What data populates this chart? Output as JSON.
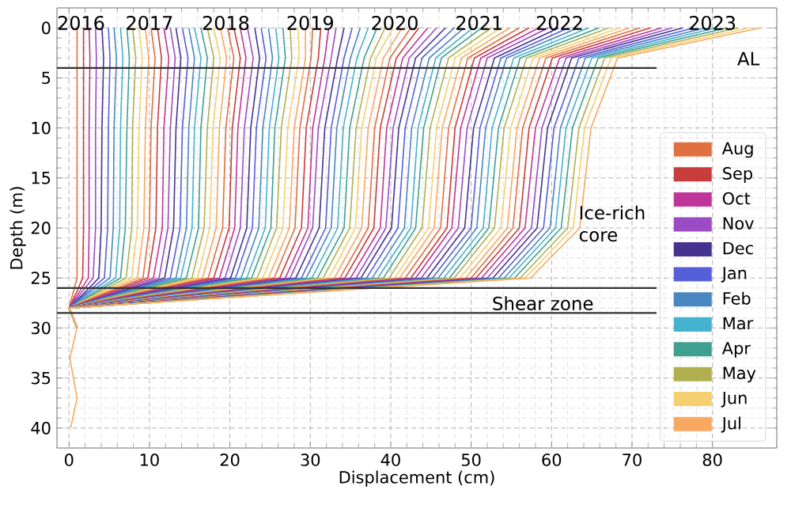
{
  "chart_data": {
    "type": "line",
    "xlabel": "Displacement (cm)",
    "ylabel": "Depth (m)",
    "xlim": [
      -1.5,
      88
    ],
    "ylim": [
      42,
      -2
    ],
    "xticks": [
      0,
      10,
      20,
      30,
      40,
      50,
      60,
      70,
      80
    ],
    "yticks": [
      0,
      5,
      10,
      15,
      20,
      25,
      30,
      35,
      40
    ],
    "grid": true,
    "legend": "bottom right",
    "ref_lines": [
      {
        "axis": "y",
        "value": 4,
        "label": "AL",
        "color": "#333333"
      },
      {
        "axis": "y",
        "value": 26,
        "color": "#333333"
      },
      {
        "axis": "y",
        "value": 28.5,
        "label": "Shear zone",
        "color": "#333333"
      }
    ],
    "annotations": [
      {
        "text": "2016",
        "x": 1.5,
        "y": -0.5
      },
      {
        "text": "2017",
        "x": 10,
        "y": -0.5
      },
      {
        "text": "2018",
        "x": 19.5,
        "y": -0.5
      },
      {
        "text": "2019",
        "x": 30,
        "y": -0.5
      },
      {
        "text": "2020",
        "x": 40.5,
        "y": -0.5
      },
      {
        "text": "2021",
        "x": 51,
        "y": -0.5
      },
      {
        "text": "2022",
        "x": 61,
        "y": -0.5
      },
      {
        "text": "2023",
        "x": 80,
        "y": -0.5
      },
      "Ice-rich core"
    ],
    "series": [
      {
        "name": "Aug",
        "color": "#e07040",
        "x": [
          1.0,
          1.0,
          1.0,
          1.0,
          1.0,
          0.5,
          0,
          1.0
        ],
        "values": [
          0,
          3,
          10,
          20,
          25,
          26.5,
          28,
          30
        ]
      },
      {
        "name": "Sep",
        "color": "#c83c3c",
        "x": [
          1.8,
          1.8,
          1.8,
          1.8,
          1.7,
          0.9,
          0,
          1.0
        ],
        "values": [
          0,
          3,
          10,
          20,
          25,
          26.5,
          28,
          30
        ]
      },
      {
        "name": "Oct",
        "color": "#c0359a",
        "x": [
          2.5,
          2.6,
          2.5,
          2.5,
          2.4,
          1.2,
          0,
          1.0
        ],
        "values": [
          0,
          3,
          10,
          20,
          25,
          26.5,
          28,
          30
        ]
      },
      {
        "name": "Nov",
        "color": "#9b4cc4",
        "x": [
          3.3,
          3.4,
          3.3,
          3.3,
          3.0,
          1.5,
          0,
          1.0
        ],
        "values": [
          0,
          3,
          10,
          20,
          25,
          26.5,
          28,
          30
        ]
      },
      {
        "name": "Dec",
        "color": "#45348f",
        "x": [
          4.1,
          4.3,
          4.1,
          4.0,
          3.7,
          1.9,
          0,
          1.0
        ],
        "values": [
          0,
          3,
          10,
          20,
          25,
          26.5,
          28,
          30
        ]
      },
      {
        "name": "Jan",
        "color": "#5560d8",
        "x": [
          4.9,
          5.1,
          4.9,
          4.8,
          4.4,
          2.2,
          0,
          1.0
        ],
        "values": [
          0,
          3,
          10,
          20,
          25,
          26.5,
          28,
          30
        ]
      },
      {
        "name": "Feb",
        "color": "#4a86c0",
        "x": [
          5.6,
          5.9,
          5.6,
          5.5,
          5.1,
          2.5,
          0,
          1.0
        ],
        "values": [
          0,
          3,
          10,
          20,
          25,
          26.5,
          28,
          30
        ]
      },
      {
        "name": "Mar",
        "color": "#45b2d0",
        "x": [
          6.4,
          6.7,
          6.4,
          6.3,
          5.8,
          2.9,
          0,
          1.0
        ],
        "values": [
          0,
          3,
          10,
          20,
          25,
          26.5,
          28,
          30
        ]
      },
      {
        "name": "Apr",
        "color": "#3fa090",
        "x": [
          7.2,
          7.5,
          7.2,
          7.0,
          6.4,
          3.2,
          0,
          1.0
        ],
        "values": [
          0,
          3,
          10,
          20,
          25,
          26.5,
          28,
          30
        ]
      },
      {
        "name": "May",
        "color": "#b0b050",
        "x": [
          7.9,
          8.3,
          7.9,
          7.8,
          7.1,
          3.6,
          0,
          1.0
        ],
        "values": [
          0,
          3,
          10,
          20,
          25,
          26.5,
          28,
          30
        ]
      },
      {
        "name": "Jun",
        "color": "#f5d070",
        "x": [
          8.7,
          9.1,
          8.7,
          8.5,
          7.8,
          3.9,
          0,
          1.0
        ],
        "values": [
          0,
          3,
          10,
          20,
          25,
          26.5,
          28,
          30
        ]
      },
      {
        "name": "Jul",
        "color": "#f8a860",
        "x": [
          9.5,
          9.9,
          9.5,
          9.3,
          8.5,
          4.2,
          0,
          1.0
        ],
        "values": [
          0,
          3,
          10,
          20,
          25,
          26.5,
          28,
          30
        ]
      },
      {
        "color": "#e07040",
        "x": [
          10.2,
          10.7,
          10.2,
          10.0,
          9.2,
          4.6,
          0,
          1.0
        ],
        "values": [
          0,
          3,
          10,
          20,
          25,
          26.5,
          28,
          30
        ]
      },
      {
        "color": "#c83c3c",
        "x": [
          11.0,
          11.5,
          11.0,
          10.8,
          9.8,
          4.9,
          0,
          1.0
        ],
        "values": [
          0,
          3,
          10,
          20,
          25,
          26.5,
          28,
          30
        ]
      },
      {
        "color": "#c0359a",
        "x": [
          11.8,
          12.4,
          11.8,
          11.6,
          10.5,
          5.3,
          0,
          1.0
        ],
        "values": [
          0,
          3,
          10,
          20,
          25,
          26.5,
          28,
          30
        ]
      },
      {
        "color": "#9b4cc4",
        "x": [
          12.6,
          13.2,
          12.6,
          12.3,
          11.2,
          5.6,
          0,
          1.0
        ],
        "values": [
          0,
          3,
          10,
          20,
          25,
          26.5,
          28,
          30
        ]
      },
      {
        "color": "#45348f",
        "x": [
          13.3,
          13.9,
          13.3,
          13.0,
          11.9,
          5.9,
          0,
          1.0
        ],
        "values": [
          0,
          3,
          10,
          20,
          25,
          26.5,
          28,
          30
        ]
      },
      {
        "color": "#5560d8",
        "x": [
          14.1,
          14.8,
          14.1,
          13.8,
          12.6,
          6.3,
          0,
          1.0
        ],
        "values": [
          0,
          3,
          10,
          20,
          25,
          26.5,
          28,
          30
        ]
      },
      {
        "color": "#4a86c0",
        "x": [
          14.9,
          15.6,
          14.9,
          14.6,
          13.3,
          6.6,
          0,
          1.0
        ],
        "values": [
          0,
          3,
          10,
          20,
          25,
          26.5,
          28,
          30
        ]
      },
      {
        "color": "#45b2d0",
        "x": [
          15.6,
          16.4,
          15.6,
          15.3,
          13.9,
          7.0,
          0,
          1.0
        ],
        "values": [
          0,
          3,
          10,
          20,
          25,
          26.5,
          28,
          30
        ]
      },
      {
        "color": "#3fa090",
        "x": [
          16.4,
          17.2,
          16.4,
          16.1,
          14.6,
          7.3,
          0,
          1.0
        ],
        "values": [
          0,
          3,
          10,
          20,
          25,
          26.5,
          28,
          30
        ]
      },
      {
        "color": "#b0b050",
        "x": [
          17.2,
          18.0,
          17.2,
          16.8,
          15.3,
          7.6,
          0,
          1.0
        ],
        "values": [
          0,
          3,
          10,
          20,
          25,
          26.5,
          28,
          30
        ]
      },
      {
        "color": "#f5d070",
        "x": [
          18.0,
          18.8,
          17.9,
          17.5,
          16.0,
          8.0,
          0,
          1.0
        ],
        "values": [
          0,
          3,
          10,
          20,
          25,
          26.5,
          28,
          30
        ]
      },
      {
        "color": "#f8a860",
        "x": [
          18.8,
          19.6,
          18.7,
          18.3,
          16.6,
          8.3,
          0,
          1.0
        ],
        "values": [
          0,
          3,
          10,
          20,
          25,
          26.5,
          28,
          30
        ]
      },
      {
        "color": "#e07040",
        "x": [
          19.7,
          20.5,
          19.5,
          19.1,
          17.3,
          8.7,
          0,
          1.0
        ],
        "values": [
          0,
          3,
          10,
          20,
          25,
          26.5,
          28,
          30
        ]
      },
      {
        "color": "#c83c3c",
        "x": [
          20.5,
          21.3,
          20.3,
          19.9,
          18.0,
          9.0,
          0,
          1.0
        ],
        "values": [
          0,
          3,
          10,
          20,
          25,
          26.5,
          28,
          30
        ]
      },
      {
        "color": "#c0359a",
        "x": [
          21.3,
          22.0,
          21.0,
          20.6,
          18.7,
          9.4,
          0,
          1.0
        ],
        "values": [
          0,
          3,
          10,
          20,
          25,
          26.5,
          28,
          30
        ]
      },
      {
        "color": "#9b4cc4",
        "x": [
          22.2,
          22.9,
          21.8,
          21.3,
          19.4,
          9.7,
          0,
          1.0
        ],
        "values": [
          0,
          3,
          10,
          20,
          25,
          26.5,
          28,
          30
        ]
      },
      {
        "color": "#45348f",
        "x": [
          23.1,
          23.7,
          22.6,
          22.1,
          20.1,
          10.0,
          0,
          1.0
        ],
        "values": [
          0,
          3,
          10,
          20,
          25,
          26.5,
          28,
          30
        ]
      },
      {
        "color": "#5560d8",
        "x": [
          23.9,
          24.5,
          23.3,
          22.8,
          20.7,
          10.4,
          0,
          1.0
        ],
        "values": [
          0,
          3,
          10,
          20,
          25,
          26.5,
          28,
          30
        ]
      },
      {
        "color": "#4a86c0",
        "x": [
          24.8,
          25.3,
          24.1,
          23.6,
          21.4,
          10.7,
          0,
          1.0
        ],
        "values": [
          0,
          3,
          10,
          20,
          25,
          26.5,
          28,
          30
        ]
      },
      {
        "color": "#45b2d0",
        "x": [
          25.7,
          26.1,
          24.9,
          24.4,
          22.1,
          11.1,
          0,
          1.0
        ],
        "values": [
          0,
          3,
          10,
          20,
          25,
          26.5,
          28,
          30
        ]
      },
      {
        "color": "#3fa090",
        "x": [
          26.6,
          26.9,
          25.6,
          25.1,
          22.7,
          11.4,
          0,
          1.0
        ],
        "values": [
          0,
          3,
          10,
          20,
          25,
          26.5,
          28,
          30
        ]
      },
      {
        "color": "#b0b050",
        "x": [
          27.5,
          27.7,
          26.4,
          25.8,
          23.4,
          11.7,
          0,
          1.0
        ],
        "values": [
          0,
          3,
          10,
          20,
          25,
          26.5,
          28,
          30
        ]
      },
      {
        "color": "#f5d070",
        "x": [
          28.5,
          28.6,
          27.2,
          26.6,
          24.1,
          12.1,
          0,
          1.0
        ],
        "values": [
          0,
          3,
          10,
          20,
          25,
          26.5,
          28,
          30
        ]
      },
      {
        "color": "#f8a860",
        "x": [
          29.4,
          29.4,
          28.0,
          27.4,
          24.8,
          12.4,
          0,
          1.0
        ],
        "values": [
          0,
          3,
          10,
          20,
          25,
          26.5,
          28,
          30
        ]
      },
      {
        "color": "#e07040",
        "x": [
          30.3,
          30.1,
          28.7,
          28.1,
          25.5,
          12.7,
          0,
          1.0
        ],
        "values": [
          0,
          3,
          10,
          20,
          25,
          26.5,
          28,
          30
        ]
      },
      {
        "color": "#c83c3c",
        "x": [
          31.3,
          31.0,
          29.5,
          28.9,
          26.2,
          13.1,
          0,
          1.0
        ],
        "values": [
          0,
          3,
          10,
          20,
          25,
          26.5,
          28,
          30
        ]
      },
      {
        "color": "#c0359a",
        "x": [
          32.3,
          31.8,
          30.3,
          29.7,
          26.9,
          13.4,
          0,
          1.0
        ],
        "values": [
          0,
          3,
          10,
          20,
          25,
          26.5,
          28,
          30
        ]
      },
      {
        "color": "#9b4cc4",
        "x": [
          33.2,
          32.6,
          31.0,
          30.3,
          27.5,
          13.8,
          0,
          1.0
        ],
        "values": [
          0,
          3,
          10,
          20,
          25,
          26.5,
          28,
          30
        ]
      },
      {
        "color": "#45348f",
        "x": [
          34.2,
          33.4,
          31.8,
          31.1,
          28.2,
          14.1,
          0,
          1.0
        ],
        "values": [
          0,
          3,
          10,
          20,
          25,
          26.5,
          28,
          30
        ]
      },
      {
        "color": "#5560d8",
        "x": [
          35.2,
          34.2,
          32.6,
          31.9,
          28.9,
          14.4,
          0,
          1.0
        ],
        "values": [
          0,
          3,
          10,
          20,
          25,
          26.5,
          28,
          30
        ]
      },
      {
        "color": "#4a86c0",
        "x": [
          36.2,
          35.0,
          33.3,
          32.6,
          29.5,
          14.8,
          0,
          1.0
        ],
        "values": [
          0,
          3,
          10,
          20,
          25,
          26.5,
          28,
          30
        ]
      },
      {
        "color": "#45b2d0",
        "x": [
          37.2,
          35.8,
          34.1,
          33.4,
          30.2,
          15.1,
          0,
          1.0
        ],
        "values": [
          0,
          3,
          10,
          20,
          25,
          26.5,
          28,
          30
        ]
      },
      {
        "color": "#3fa090",
        "x": [
          38.3,
          36.7,
          34.9,
          34.2,
          30.9,
          15.5,
          0,
          1.0
        ],
        "values": [
          0,
          3,
          10,
          20,
          25,
          26.5,
          28,
          30
        ]
      },
      {
        "color": "#b0b050",
        "x": [
          39.3,
          37.5,
          35.7,
          34.9,
          31.6,
          15.8,
          0,
          1.0
        ],
        "values": [
          0,
          3,
          10,
          20,
          25,
          26.5,
          28,
          30
        ]
      },
      {
        "color": "#f5d070",
        "x": [
          40.3,
          38.2,
          36.4,
          35.6,
          32.3,
          16.1,
          0,
          1.0
        ],
        "values": [
          0,
          3,
          10,
          20,
          25,
          26.5,
          28,
          30
        ]
      },
      {
        "color": "#f8a860",
        "x": [
          41.4,
          39.1,
          37.2,
          36.4,
          33.0,
          16.5,
          0,
          1.0
        ],
        "values": [
          0,
          3,
          10,
          20,
          25,
          26.5,
          28,
          30
        ]
      },
      {
        "color": "#e07040",
        "x": [
          42.5,
          39.9,
          38.0,
          37.2,
          33.7,
          16.8,
          0,
          1.0
        ],
        "values": [
          0,
          3,
          10,
          20,
          25,
          26.5,
          28,
          30
        ]
      },
      {
        "color": "#c83c3c",
        "x": [
          43.5,
          40.7,
          38.7,
          37.9,
          34.3,
          17.2,
          0,
          1.0
        ],
        "values": [
          0,
          3,
          10,
          20,
          25,
          26.5,
          28,
          30
        ]
      },
      {
        "color": "#c0359a",
        "x": [
          44.6,
          41.5,
          39.5,
          38.7,
          35.0,
          17.5,
          0,
          1.0
        ],
        "values": [
          0,
          3,
          10,
          20,
          25,
          26.5,
          28,
          30
        ]
      },
      {
        "color": "#9b4cc4",
        "x": [
          45.7,
          42.3,
          40.3,
          39.4,
          35.7,
          17.8,
          0,
          1.0
        ],
        "values": [
          0,
          3,
          10,
          20,
          25,
          26.5,
          28,
          30
        ]
      },
      {
        "color": "#45348f",
        "x": [
          46.8,
          43.1,
          41.0,
          40.1,
          36.3,
          18.2,
          0,
          1.0
        ],
        "values": [
          0,
          3,
          10,
          20,
          25,
          26.5,
          28,
          30
        ]
      },
      {
        "color": "#5560d8",
        "x": [
          47.9,
          43.9,
          41.8,
          40.9,
          37.0,
          18.5,
          0,
          1.0
        ],
        "values": [
          0,
          3,
          10,
          20,
          25,
          26.5,
          28,
          30
        ]
      },
      {
        "color": "#4a86c0",
        "x": [
          49.1,
          44.8,
          42.6,
          41.7,
          37.7,
          18.9,
          0,
          1.0
        ],
        "values": [
          0,
          3,
          10,
          20,
          25,
          26.5,
          28,
          30
        ]
      },
      {
        "color": "#45b2d0",
        "x": [
          50.2,
          45.6,
          43.4,
          42.5,
          38.4,
          19.2,
          0,
          1.0
        ],
        "values": [
          0,
          3,
          10,
          20,
          25,
          26.5,
          28,
          30
        ]
      },
      {
        "color": "#3fa090",
        "x": [
          51.3,
          46.3,
          44.1,
          43.1,
          39.1,
          19.5,
          0,
          1.0
        ],
        "values": [
          0,
          3,
          10,
          20,
          25,
          26.5,
          28,
          30
        ]
      },
      {
        "color": "#b0b050",
        "x": [
          52.5,
          47.2,
          44.9,
          43.9,
          39.8,
          19.9,
          0,
          1.0
        ],
        "values": [
          0,
          3,
          10,
          20,
          25,
          26.5,
          28,
          30
        ]
      },
      {
        "color": "#f5d070",
        "x": [
          53.7,
          48.0,
          45.7,
          44.7,
          40.5,
          20.2,
          0,
          1.0
        ],
        "values": [
          0,
          3,
          10,
          20,
          25,
          26.5,
          28,
          30
        ]
      },
      {
        "color": "#f8a860",
        "x": [
          54.8,
          48.8,
          46.4,
          45.4,
          41.1,
          20.6,
          0,
          1.0
        ],
        "values": [
          0,
          3,
          10,
          20,
          25,
          26.5,
          28,
          30
        ]
      },
      {
        "color": "#e07040",
        "x": [
          56.0,
          49.6,
          47.2,
          46.2,
          41.8,
          20.9,
          0,
          1.0
        ],
        "values": [
          0,
          3,
          10,
          20,
          25,
          26.5,
          28,
          30
        ]
      },
      {
        "color": "#c83c3c",
        "x": [
          57.2,
          50.4,
          48.0,
          47.0,
          42.5,
          21.3,
          0,
          1.0
        ],
        "values": [
          0,
          3,
          10,
          20,
          25,
          26.5,
          28,
          30
        ]
      },
      {
        "color": "#c0359a",
        "x": [
          58.4,
          51.2,
          48.7,
          47.6,
          43.1,
          21.6,
          0,
          1.0
        ],
        "values": [
          0,
          3,
          10,
          20,
          25,
          26.5,
          28,
          30
        ]
      },
      {
        "color": "#9b4cc4",
        "x": [
          59.6,
          52.0,
          49.5,
          48.4,
          43.8,
          21.9,
          0,
          1.0
        ],
        "values": [
          0,
          3,
          10,
          20,
          25,
          26.5,
          28,
          30
        ]
      },
      {
        "color": "#45348f",
        "x": [
          60.9,
          52.9,
          50.3,
          49.2,
          44.5,
          22.3,
          0,
          1.0
        ],
        "values": [
          0,
          3,
          10,
          20,
          25,
          26.5,
          28,
          30
        ]
      },
      {
        "color": "#5560d8",
        "x": [
          62.1,
          53.7,
          51.1,
          50.0,
          45.2,
          22.6,
          0,
          1.0
        ],
        "values": [
          0,
          3,
          10,
          20,
          25,
          26.5,
          28,
          30
        ]
      },
      {
        "color": "#4a86c0",
        "x": [
          63.3,
          54.4,
          51.8,
          50.7,
          45.9,
          22.9,
          0,
          1.0
        ],
        "values": [
          0,
          3,
          10,
          20,
          25,
          26.5,
          28,
          30
        ]
      },
      {
        "color": "#45b2d0",
        "x": [
          64.6,
          55.3,
          52.6,
          51.5,
          46.6,
          23.3,
          0,
          1.0
        ],
        "values": [
          0,
          3,
          10,
          20,
          25,
          26.5,
          28,
          30
        ]
      },
      {
        "color": "#3fa090",
        "x": [
          65.9,
          56.1,
          53.4,
          52.2,
          47.3,
          23.6,
          0,
          1.0
        ],
        "values": [
          0,
          3,
          10,
          20,
          25,
          26.5,
          28,
          30
        ]
      },
      {
        "color": "#b0b050",
        "x": [
          67.1,
          56.9,
          54.1,
          52.9,
          47.9,
          24.0,
          0,
          1.0
        ],
        "values": [
          0,
          3,
          10,
          20,
          25,
          26.5,
          28,
          30
        ]
      },
      {
        "color": "#f5d070",
        "x": [
          68.4,
          57.7,
          54.9,
          53.7,
          48.6,
          24.3,
          0,
          1.0
        ],
        "values": [
          0,
          3,
          10,
          20,
          25,
          26.5,
          28,
          30
        ]
      },
      {
        "color": "#f8a860",
        "x": [
          69.7,
          58.5,
          55.7,
          54.5,
          49.3,
          24.6,
          0,
          1.0
        ],
        "values": [
          0,
          3,
          10,
          20,
          25,
          26.5,
          28,
          30
        ]
      },
      {
        "color": "#e07040",
        "x": [
          71.0,
          59.3,
          56.4,
          55.2,
          50.0,
          25.0,
          0,
          1.0
        ],
        "values": [
          0,
          3,
          10,
          20,
          25,
          26.5,
          28,
          30
        ]
      },
      {
        "color": "#c83c3c",
        "x": [
          72.3,
          60.1,
          57.2,
          56.0,
          50.6,
          25.3,
          0,
          1.0
        ],
        "values": [
          0,
          3,
          10,
          20,
          25,
          26.5,
          28,
          30
        ]
      },
      {
        "color": "#c0359a",
        "x": [
          73.7,
          61.0,
          58.0,
          56.7,
          51.3,
          25.7,
          0,
          1.0
        ],
        "values": [
          0,
          3,
          10,
          20,
          25,
          26.5,
          28,
          30
        ]
      },
      {
        "color": "#9b4cc4",
        "x": [
          75.0,
          61.8,
          58.8,
          57.5,
          52.0,
          26.0,
          0,
          1.0
        ],
        "values": [
          0,
          3,
          10,
          20,
          25,
          26.5,
          28,
          30
        ]
      },
      {
        "color": "#45348f",
        "x": [
          76.3,
          62.5,
          59.5,
          58.2,
          52.7,
          26.3,
          0,
          1.0
        ],
        "values": [
          0,
          3,
          10,
          20,
          25,
          26.5,
          28,
          30
        ]
      },
      {
        "color": "#5560d8",
        "x": [
          77.7,
          63.4,
          60.3,
          59.0,
          53.4,
          26.7,
          0,
          1.0
        ],
        "values": [
          0,
          3,
          10,
          20,
          25,
          26.5,
          28,
          30
        ]
      },
      {
        "color": "#4a86c0",
        "x": [
          79.1,
          64.2,
          61.1,
          59.8,
          54.1,
          27.0,
          0,
          1.0
        ],
        "values": [
          0,
          3,
          10,
          20,
          25,
          26.5,
          28,
          30
        ]
      },
      {
        "color": "#45b2d0",
        "x": [
          80.4,
          65.0,
          61.8,
          60.5,
          54.7,
          27.4,
          0,
          1.0
        ],
        "values": [
          0,
          3,
          10,
          20,
          25,
          26.5,
          28,
          30
        ]
      },
      {
        "color": "#3fa090",
        "x": [
          81.8,
          65.8,
          62.6,
          61.2,
          55.4,
          27.7,
          0,
          1.0
        ],
        "values": [
          0,
          3,
          10,
          20,
          25,
          26.5,
          28,
          30
        ]
      },
      {
        "color": "#b0b050",
        "x": [
          83.2,
          66.6,
          63.4,
          62.0,
          56.1,
          28.1,
          0,
          1.0
        ],
        "values": [
          0,
          3,
          10,
          20,
          25,
          26.5,
          28,
          30
        ]
      },
      {
        "color": "#f5d070",
        "x": [
          84.6,
          67.4,
          64.1,
          62.7,
          56.7,
          28.4,
          0,
          1.0
        ],
        "values": [
          0,
          3,
          10,
          20,
          25,
          26.5,
          28,
          30
        ]
      },
      {
        "color": "#f8a860",
        "x": [
          86.0,
          68.2,
          64.9,
          63.5,
          57.4,
          28.7,
          0,
          1.0,
          0.1,
          1.0,
          0.2
        ],
        "values": [
          0,
          3,
          10,
          20,
          25,
          26.5,
          28,
          30,
          33,
          37,
          40
        ]
      }
    ]
  }
}
